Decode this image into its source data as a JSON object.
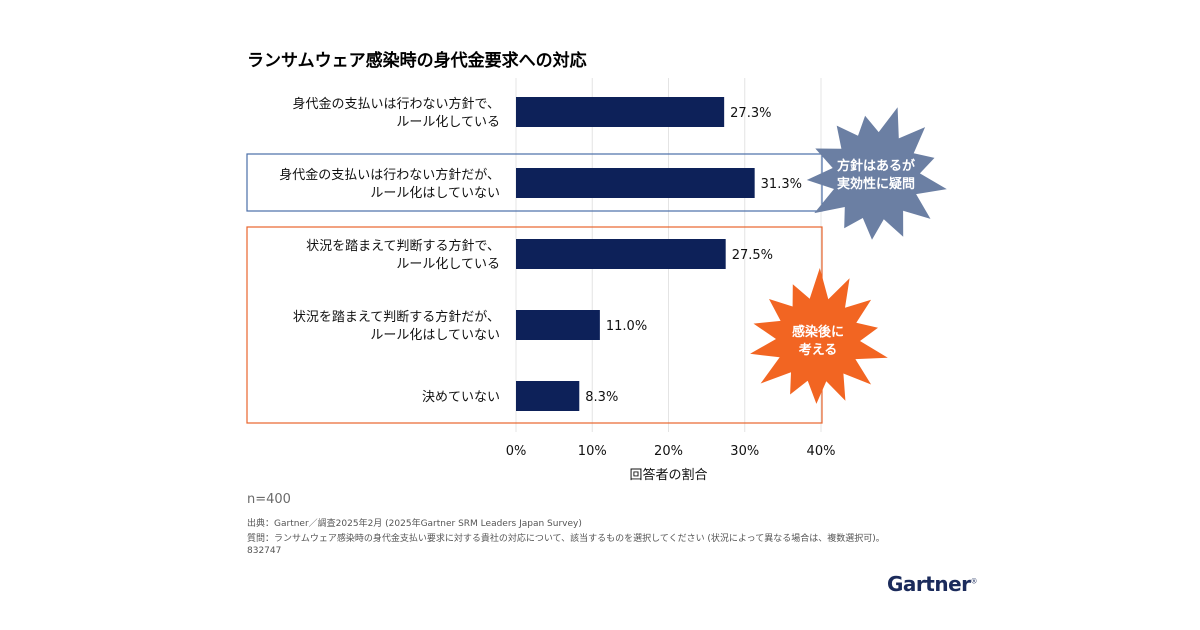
{
  "title": "ランサムウェア感染時の身代金要求への対応",
  "chart_data": {
    "type": "bar",
    "orientation": "horizontal",
    "categories": [
      [
        "身代金の支払いは行わない方針で、",
        "ルール化している"
      ],
      [
        "身代金の支払いは行わない方針だが、",
        "ルール化はしていない"
      ],
      [
        "状況を踏まえて判断する方針で、",
        "ルール化している"
      ],
      [
        "状況を踏まえて判断する方針だが、",
        "ルール化はしていない"
      ],
      [
        "決めていない"
      ]
    ],
    "values": [
      27.3,
      31.3,
      27.5,
      11.0,
      8.3
    ],
    "value_labels": [
      "27.3%",
      "31.3%",
      "27.5%",
      "11.0%",
      "8.3%"
    ],
    "xlim": [
      0,
      40
    ],
    "x_ticks": [
      "0%",
      "10%",
      "20%",
      "30%",
      "40%"
    ],
    "xlabel": "回答者の割合",
    "bar_color": "#0d2159",
    "grid": true,
    "annotations": [
      {
        "lines": [
          "方針はあるが",
          "実効性に疑問"
        ],
        "color": "#6b7fa3",
        "box_color": "#4a6ea8",
        "rows": [
          1
        ]
      },
      {
        "lines": [
          "感染後に",
          "考える"
        ],
        "color": "#f26522",
        "box_color": "#e8642c",
        "rows": [
          2,
          3,
          4
        ]
      }
    ]
  },
  "sample": "n=400",
  "source": "出典：Gartner／調査2025年2月 (2025年Gartner SRM Leaders Japan Survey)",
  "question": "質問：ランサムウェア感染時の身代金支払い要求に対する貴社の対応について、該当するものを選択してください (状況によって異なる場合は、複数選択可)。",
  "doc_id": "832747",
  "logo": "Gartner",
  "logo_mark": "®"
}
